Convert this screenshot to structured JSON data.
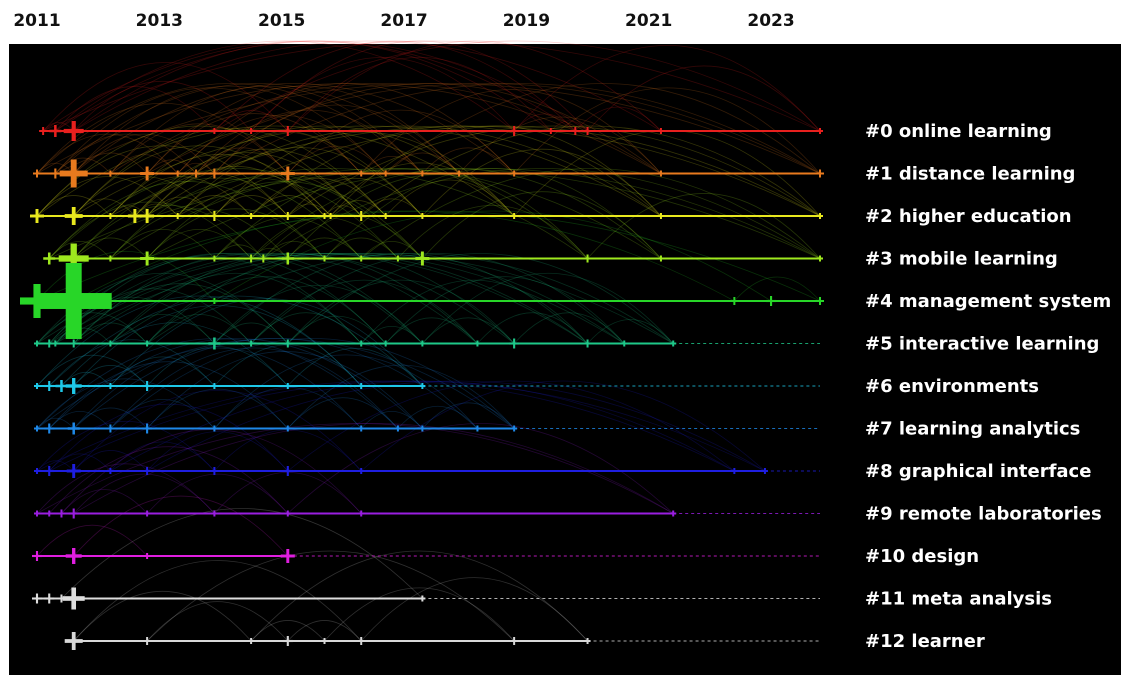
{
  "chart_data": {
    "type": "timeline",
    "title": "",
    "x_axis_ticks": [
      "2011",
      "2013",
      "2015",
      "2017",
      "2019",
      "2021",
      "2023"
    ],
    "xlim": [
      2011,
      2023.8
    ],
    "clusters": [
      {
        "label": "#0 online learning",
        "color": "#e8201e",
        "active_until": 2023.8,
        "nodes": [
          [
            2011.1,
            4
          ],
          [
            2011.3,
            6
          ],
          [
            2011.6,
            10
          ],
          [
            2013.9,
            3
          ],
          [
            2014.5,
            3
          ],
          [
            2015.1,
            5
          ],
          [
            2018.8,
            5
          ],
          [
            2019.4,
            3
          ],
          [
            2019.8,
            4
          ],
          [
            2020.0,
            4
          ],
          [
            2021.2,
            3
          ],
          [
            2023.8,
            3
          ]
        ]
      },
      {
        "label": "#1 distance learning",
        "color": "#e87a1e",
        "active_until": 2023.8,
        "nodes": [
          [
            2011.0,
            4
          ],
          [
            2011.3,
            5
          ],
          [
            2011.6,
            14
          ],
          [
            2012.2,
            3
          ],
          [
            2012.8,
            7
          ],
          [
            2013.3,
            3
          ],
          [
            2013.6,
            4
          ],
          [
            2013.9,
            5
          ],
          [
            2015.1,
            7
          ],
          [
            2016.3,
            3
          ],
          [
            2016.7,
            3
          ],
          [
            2017.3,
            3
          ],
          [
            2017.9,
            3
          ],
          [
            2018.8,
            3
          ],
          [
            2021.2,
            3
          ],
          [
            2023.8,
            4
          ]
        ]
      },
      {
        "label": "#2 higher education",
        "color": "#e8e81e",
        "active_until": 2023.8,
        "nodes": [
          [
            2011.0,
            7
          ],
          [
            2011.6,
            9
          ],
          [
            2012.2,
            3
          ],
          [
            2012.6,
            7
          ],
          [
            2012.8,
            7
          ],
          [
            2013.3,
            3
          ],
          [
            2013.9,
            5
          ],
          [
            2014.5,
            3
          ],
          [
            2015.1,
            4
          ],
          [
            2015.7,
            3
          ],
          [
            2015.8,
            3
          ],
          [
            2016.3,
            5
          ],
          [
            2016.7,
            3
          ],
          [
            2017.3,
            3
          ],
          [
            2018.8,
            3
          ],
          [
            2021.2,
            3
          ],
          [
            2023.8,
            3
          ]
        ]
      },
      {
        "label": "#3 mobile learning",
        "color": "#9ee81e",
        "active_until": 2023.8,
        "nodes": [
          [
            2011.2,
            6
          ],
          [
            2011.6,
            15
          ],
          [
            2012.2,
            3
          ],
          [
            2012.8,
            7
          ],
          [
            2013.9,
            3
          ],
          [
            2014.5,
            4
          ],
          [
            2014.7,
            4
          ],
          [
            2015.1,
            6
          ],
          [
            2015.7,
            3
          ],
          [
            2016.3,
            3
          ],
          [
            2016.9,
            3
          ],
          [
            2017.3,
            7
          ],
          [
            2020.0,
            4
          ],
          [
            2021.2,
            3
          ],
          [
            2023.8,
            3
          ]
        ]
      },
      {
        "label": "#4 management system",
        "color": "#28d628",
        "active_until": 2023.8,
        "nodes": [
          [
            2011.0,
            17
          ],
          [
            2011.6,
            38
          ],
          [
            2013.9,
            3
          ],
          [
            2022.4,
            4
          ],
          [
            2023.0,
            5
          ],
          [
            2023.8,
            4
          ]
        ]
      },
      {
        "label": "#5 interactive learning",
        "color": "#1ec889",
        "active_until": 2021.4,
        "nodes": [
          [
            2011.0,
            3
          ],
          [
            2011.2,
            4
          ],
          [
            2011.3,
            3
          ],
          [
            2011.6,
            4
          ],
          [
            2012.2,
            3
          ],
          [
            2012.8,
            3
          ],
          [
            2013.9,
            6
          ],
          [
            2014.5,
            3
          ],
          [
            2015.1,
            4
          ],
          [
            2016.3,
            3
          ],
          [
            2016.7,
            3
          ],
          [
            2017.3,
            3
          ],
          [
            2018.2,
            3
          ],
          [
            2018.8,
            5
          ],
          [
            2020.0,
            4
          ],
          [
            2020.6,
            3
          ],
          [
            2021.4,
            3
          ]
        ]
      },
      {
        "label": "#6 environments",
        "color": "#1ec8e8",
        "active_until": 2017.3,
        "nodes": [
          [
            2011.0,
            3
          ],
          [
            2011.2,
            5
          ],
          [
            2011.4,
            6
          ],
          [
            2011.6,
            8
          ],
          [
            2012.2,
            3
          ],
          [
            2012.8,
            5
          ],
          [
            2013.9,
            3
          ],
          [
            2015.1,
            3
          ],
          [
            2016.3,
            3
          ],
          [
            2017.3,
            3
          ]
        ]
      },
      {
        "label": "#7 learning analytics",
        "color": "#1e88e8",
        "active_until": 2018.8,
        "nodes": [
          [
            2011.0,
            3
          ],
          [
            2011.2,
            5
          ],
          [
            2011.6,
            6
          ],
          [
            2012.2,
            4
          ],
          [
            2012.8,
            5
          ],
          [
            2013.9,
            3
          ],
          [
            2015.1,
            3
          ],
          [
            2016.3,
            3
          ],
          [
            2016.9,
            3
          ],
          [
            2017.3,
            3
          ],
          [
            2018.2,
            3
          ],
          [
            2018.8,
            3
          ]
        ]
      },
      {
        "label": "#8 graphical interface",
        "color": "#1e1ee0",
        "active_until": 2022.9,
        "nodes": [
          [
            2011.0,
            3
          ],
          [
            2011.2,
            5
          ],
          [
            2011.6,
            7
          ],
          [
            2012.2,
            3
          ],
          [
            2012.8,
            4
          ],
          [
            2013.9,
            4
          ],
          [
            2015.1,
            5
          ],
          [
            2016.3,
            3
          ],
          [
            2022.4,
            3
          ],
          [
            2022.9,
            3
          ]
        ]
      },
      {
        "label": "#9 remote laboratories",
        "color": "#9a1ee0",
        "active_until": 2021.4,
        "nodes": [
          [
            2011.0,
            3
          ],
          [
            2011.2,
            3
          ],
          [
            2011.4,
            4
          ],
          [
            2011.6,
            5
          ],
          [
            2012.8,
            3
          ],
          [
            2013.9,
            3
          ],
          [
            2015.1,
            3
          ],
          [
            2016.3,
            3
          ],
          [
            2021.4,
            3
          ]
        ]
      },
      {
        "label": "#10 design",
        "color": "#e01ee0",
        "active_until": 2015.1,
        "nodes": [
          [
            2011.0,
            5
          ],
          [
            2011.6,
            8
          ],
          [
            2012.8,
            3
          ],
          [
            2015.1,
            7
          ]
        ]
      },
      {
        "label": "#11 meta analysis",
        "color": "#dddddd",
        "active_until": 2017.3,
        "nodes": [
          [
            2011.0,
            5
          ],
          [
            2011.2,
            5
          ],
          [
            2011.4,
            4
          ],
          [
            2011.6,
            11
          ],
          [
            2017.3,
            3
          ]
        ]
      },
      {
        "label": "#12 learner",
        "color": "#d8d8d8",
        "active_until": 2020.0,
        "nodes": [
          [
            2011.6,
            9
          ],
          [
            2012.8,
            4
          ],
          [
            2014.5,
            3
          ],
          [
            2015.1,
            5
          ],
          [
            2015.7,
            3
          ],
          [
            2016.3,
            4
          ],
          [
            2018.8,
            4
          ],
          [
            2020.0,
            3
          ]
        ]
      }
    ]
  }
}
